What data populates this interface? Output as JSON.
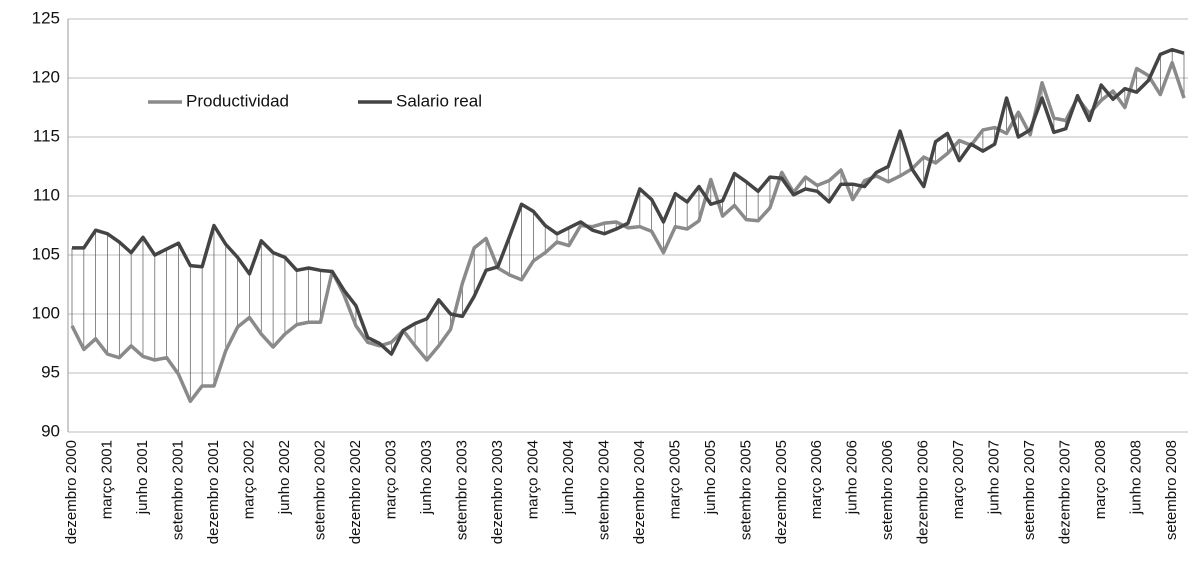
{
  "chart_data": {
    "type": "line",
    "grid": true,
    "drop_lines": true,
    "legend": "top-left",
    "categories": [
      "dezembro 2000",
      null,
      null,
      "março 2001",
      null,
      null,
      "junho 2001",
      null,
      null,
      "setembro 2001",
      null,
      null,
      "dezembro 2001",
      null,
      null,
      "março 2002",
      null,
      null,
      "junho 2002",
      null,
      null,
      "setembro 2002",
      null,
      null,
      "dezembro 2002",
      null,
      null,
      "março 2003",
      null,
      null,
      "junho 2003",
      null,
      null,
      "setembro 2003",
      null,
      null,
      "dezembro 2003",
      null,
      null,
      "março 2004",
      null,
      null,
      "junho 2004",
      null,
      null,
      "setembro 2004",
      null,
      null,
      "dezembro 2004",
      null,
      null,
      "março 2005",
      null,
      null,
      "junho 2005",
      null,
      null,
      "setembro 2005",
      null,
      null,
      "dezembro 2005",
      null,
      null,
      "março 2006",
      null,
      null,
      "junho 2006",
      null,
      null,
      "setembro 2006",
      null,
      null,
      "dezembro 2006",
      null,
      null,
      "março 2007",
      null,
      null,
      "junho 2007",
      null,
      null,
      "setembro 2007",
      null,
      null,
      "dezembro 2007",
      null,
      null,
      "março 2008",
      null,
      null,
      "junho 2008",
      null,
      null,
      "setembro 2008",
      null
    ],
    "series": [
      {
        "name": "Productividad",
        "color": "#8a8a8a",
        "values": [
          99.0,
          97.0,
          97.9,
          96.6,
          96.3,
          97.3,
          96.4,
          96.1,
          96.3,
          94.9,
          92.6,
          93.9,
          93.9,
          96.9,
          98.9,
          99.7,
          98.3,
          97.2,
          98.3,
          99.1,
          99.3,
          99.3,
          103.6,
          101.6,
          99.0,
          97.6,
          97.3,
          97.6,
          98.6,
          97.3,
          96.1,
          97.3,
          98.7,
          102.6,
          105.6,
          106.4,
          103.9,
          103.3,
          102.9,
          104.5,
          105.2,
          106.1,
          105.8,
          107.5,
          107.4,
          107.7,
          107.8,
          107.3,
          107.4,
          107.0,
          105.2,
          107.4,
          107.2,
          107.9,
          111.4,
          108.3,
          109.2,
          108.0,
          107.9,
          109.0,
          112.0,
          110.3,
          111.6,
          110.9,
          111.3,
          112.2,
          109.7,
          111.3,
          111.7,
          111.2,
          111.7,
          112.3,
          113.3,
          112.8,
          113.6,
          114.7,
          114.3,
          115.6,
          115.8,
          115.3,
          117.1,
          115.2,
          119.6,
          116.6,
          116.4,
          118.3,
          117.0,
          118.1,
          118.9,
          117.5,
          120.8,
          120.2,
          118.6,
          121.3,
          118.3
        ]
      },
      {
        "name": "Salario real",
        "color": "#444444",
        "values": [
          105.6,
          105.6,
          107.1,
          106.8,
          106.1,
          105.2,
          106.5,
          105.0,
          105.5,
          106.0,
          104.1,
          104.0,
          107.5,
          105.9,
          104.8,
          103.4,
          106.2,
          105.2,
          104.8,
          103.7,
          103.9,
          103.7,
          103.6,
          102.0,
          100.7,
          98.0,
          97.5,
          96.6,
          98.6,
          99.2,
          99.6,
          101.2,
          100.0,
          99.8,
          101.5,
          103.7,
          104.0,
          106.6,
          109.3,
          108.7,
          107.5,
          106.8,
          107.3,
          107.8,
          107.1,
          106.8,
          107.2,
          107.7,
          110.6,
          109.7,
          107.8,
          110.2,
          109.5,
          110.8,
          109.3,
          109.6,
          111.9,
          111.2,
          110.4,
          111.6,
          111.5,
          110.1,
          110.6,
          110.4,
          109.5,
          111.0,
          111.0,
          110.8,
          112.0,
          112.5,
          115.5,
          112.3,
          110.8,
          114.6,
          115.3,
          113.0,
          114.4,
          113.8,
          114.4,
          118.3,
          115.0,
          115.6,
          118.3,
          115.4,
          115.7,
          118.5,
          116.4,
          119.4,
          118.2,
          119.1,
          118.8,
          119.8,
          122.0,
          122.4,
          122.1
        ]
      }
    ],
    "ylim": [
      90,
      125
    ],
    "yticks": [
      90,
      95,
      100,
      105,
      110,
      115,
      120,
      125
    ]
  }
}
